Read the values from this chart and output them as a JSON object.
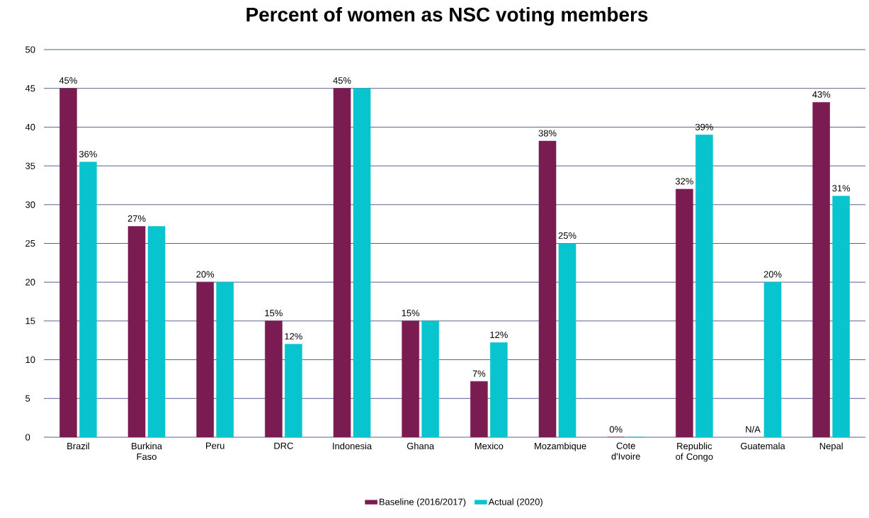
{
  "chart_data": {
    "type": "bar",
    "title": "Percent of women as NSC voting members",
    "categories": [
      "Brazil",
      "Burkina Faso",
      "Peru",
      "DRC",
      "Indonesia",
      "Ghana",
      "Mexico",
      "Mozambique",
      "Cote d'Ivoire",
      "Republic of Congo",
      "Guatemala",
      "Nepal"
    ],
    "series": [
      {
        "name": "Baseline (2016/2017)",
        "color": "#7a1c52",
        "values": [
          45,
          27.2,
          20,
          15,
          45,
          15,
          7.2,
          38.2,
          0,
          32,
          null,
          43.2
        ],
        "value_labels": [
          "45%",
          "27%",
          "20%",
          "15%",
          "45%",
          "15%",
          "7%",
          "38%",
          "0%",
          "32%",
          "N/A",
          "43%"
        ]
      },
      {
        "name": "Actual (2020)",
        "color": "#08c4cf",
        "values": [
          35.5,
          27.2,
          20,
          12,
          45,
          15,
          12.2,
          25,
          0,
          39,
          20,
          31.1
        ],
        "value_labels": [
          "36%",
          null,
          null,
          "12%",
          null,
          null,
          "12%",
          "25%",
          null,
          "39%",
          "20%",
          "31%"
        ]
      }
    ],
    "ylim": [
      0,
      50
    ],
    "yticks": [
      0,
      5,
      10,
      15,
      20,
      25,
      30,
      35,
      40,
      45,
      50
    ],
    "grid": "y",
    "legend": "bottom"
  }
}
